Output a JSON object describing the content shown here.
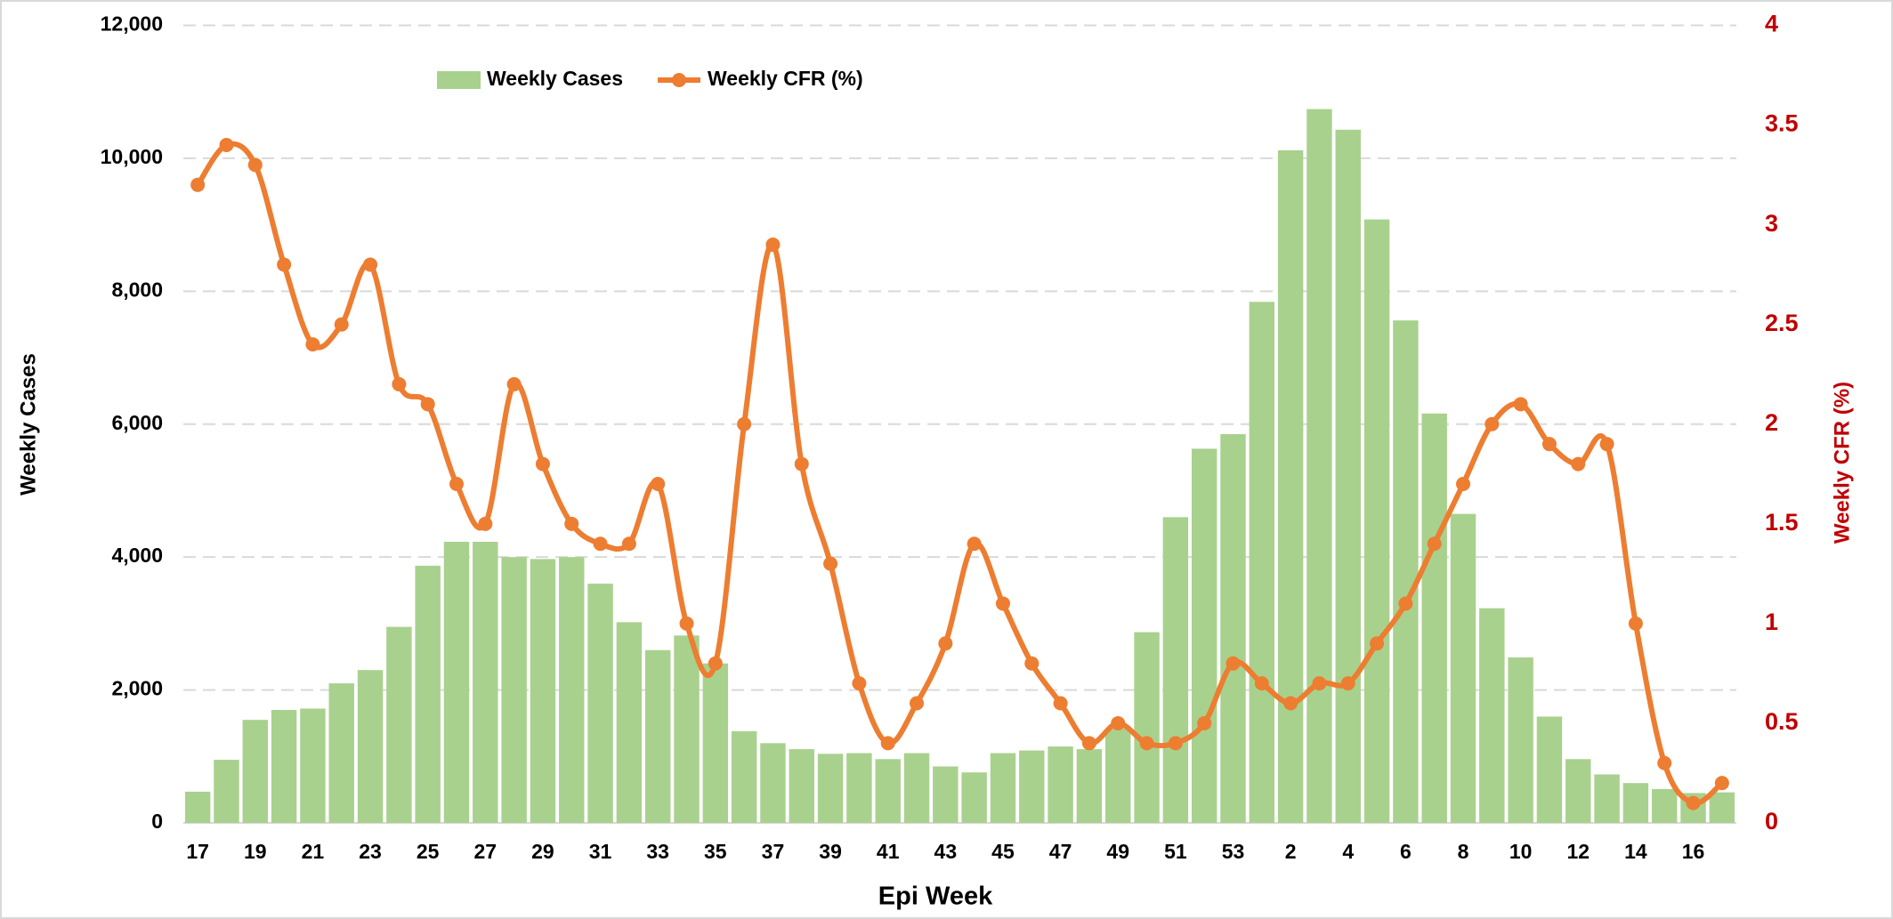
{
  "chart_data": {
    "type": "bar-line",
    "x_label": "Epi Week",
    "y_label": "Weekly Cases",
    "y2_label": "Weekly CFR (%)",
    "categories": [
      "17",
      null,
      "19",
      null,
      "21",
      null,
      "23",
      null,
      "25",
      null,
      "27",
      null,
      "29",
      null,
      "31",
      null,
      "33",
      null,
      "35",
      null,
      "37",
      null,
      "39",
      null,
      "41",
      null,
      "43",
      null,
      "45",
      null,
      "47",
      null,
      "49",
      null,
      "51",
      null,
      "53",
      null,
      "2",
      null,
      "4",
      null,
      "6",
      null,
      "8",
      null,
      "10",
      null,
      "12",
      null,
      "14",
      null,
      "16",
      null
    ],
    "series": [
      {
        "name": "Weekly Cases",
        "type": "bar",
        "color": "#a9d18e",
        "values": [
          470,
          950,
          1550,
          1700,
          1720,
          2100,
          2300,
          2950,
          3870,
          4230,
          4230,
          4000,
          3970,
          4000,
          3600,
          3020,
          2600,
          2820,
          2400,
          1380,
          1200,
          1110,
          1040,
          1050,
          960,
          1050,
          850,
          760,
          1050,
          1090,
          1150,
          1110,
          1420,
          2870,
          4600,
          5630,
          5850,
          7840,
          10120,
          10740,
          10430,
          9080,
          7560,
          6160,
          4650,
          3230,
          2490,
          1600,
          960,
          730,
          600,
          510,
          450,
          460
        ]
      },
      {
        "name": "Weekly CFR (%)",
        "type": "line",
        "axis": "y2",
        "color": "#ed7d31",
        "values": [
          3.2,
          3.4,
          3.3,
          2.8,
          2.4,
          2.5,
          2.8,
          2.2,
          2.1,
          1.7,
          1.5,
          2.2,
          1.8,
          1.5,
          1.4,
          1.4,
          1.7,
          1.0,
          0.8,
          2.0,
          2.9,
          1.8,
          1.3,
          0.7,
          0.4,
          0.6,
          0.9,
          1.4,
          1.1,
          0.8,
          0.6,
          0.4,
          0.5,
          0.4,
          0.4,
          0.5,
          0.8,
          0.7,
          0.6,
          0.7,
          0.7,
          0.9,
          1.1,
          1.4,
          1.7,
          2.0,
          2.1,
          1.9,
          1.8,
          1.9,
          1.0,
          0.3,
          0.1,
          0.2
        ]
      }
    ],
    "ylim": [
      0,
      12000
    ],
    "yticks": [
      0,
      {
        "value": 2000,
        "label": "2,000"
      },
      {
        "value": 4000,
        "label": "4,000"
      },
      {
        "value": 6000,
        "label": "6,000"
      },
      {
        "value": 8000,
        "label": "8,000"
      },
      {
        "value": 10000,
        "label": "10,000"
      },
      {
        "value": 12000,
        "label": "12,000"
      }
    ],
    "y2lim": [
      0,
      4
    ],
    "y2ticks": [
      0,
      0.5,
      1,
      1.5,
      2,
      2.5,
      3,
      3.5,
      4
    ],
    "y2_color": "#c00000",
    "grid": true,
    "legend": "top"
  }
}
